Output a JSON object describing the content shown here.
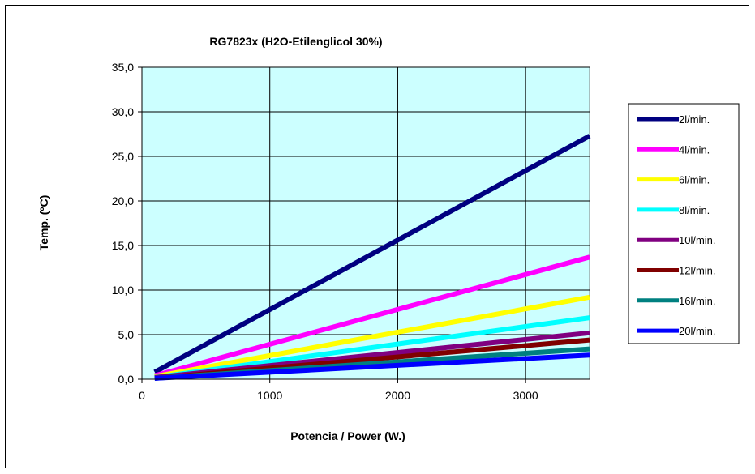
{
  "chart_data": {
    "type": "line",
    "title": "RG7823x (H2O-Etilenglicol 30%)",
    "xlabel": "Potencia / Power (W.)",
    "ylabel": "Temp. (ºC)",
    "xlim": [
      0,
      3500
    ],
    "ylim": [
      0,
      35
    ],
    "x_ticks": [
      0,
      1000,
      2000,
      3000
    ],
    "x_tick_labels": [
      "0",
      "1000",
      "2000",
      "3000"
    ],
    "y_ticks": [
      0,
      5,
      10,
      15,
      20,
      25,
      30,
      35
    ],
    "y_tick_labels": [
      "0,0",
      "5,0",
      "10,0",
      "15,0",
      "20,0",
      "25,0",
      "30,0",
      "35,0"
    ],
    "grid": true,
    "plot_background": "#ccffff",
    "legend_position": "right",
    "x": [
      100,
      3500
    ],
    "series": [
      {
        "name": "2l/min.",
        "color": "#000080",
        "values": [
          0.8,
          27.3
        ]
      },
      {
        "name": "4l/min.",
        "color": "#ff00ff",
        "values": [
          0.4,
          13.7
        ]
      },
      {
        "name": "6l/min.",
        "color": "#ffff00",
        "values": [
          0.3,
          9.2
        ]
      },
      {
        "name": "8l/min.",
        "color": "#00ffff",
        "values": [
          0.2,
          6.9
        ]
      },
      {
        "name": "10l/min.",
        "color": "#800080",
        "values": [
          0.2,
          5.2
        ]
      },
      {
        "name": "12l/min.",
        "color": "#800000",
        "values": [
          0.1,
          4.4
        ]
      },
      {
        "name": "16l/min.",
        "color": "#008080",
        "values": [
          0.1,
          3.4
        ]
      },
      {
        "name": "20l/min.",
        "color": "#0000ff",
        "values": [
          0.1,
          2.7
        ]
      }
    ]
  }
}
